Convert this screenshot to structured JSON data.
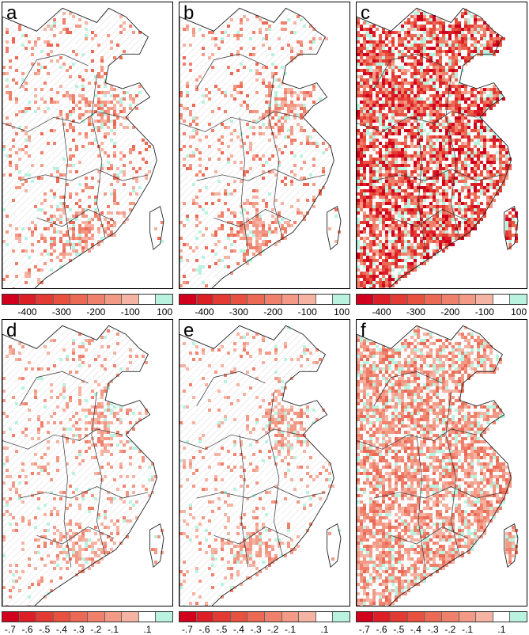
{
  "panels": [
    {
      "label": "a",
      "row": 0,
      "col": 0,
      "scheme": "diff",
      "density": 0.18,
      "intensity": 0.45,
      "seed": 11
    },
    {
      "label": "b",
      "row": 0,
      "col": 1,
      "scheme": "diff",
      "density": 0.16,
      "intensity": 0.45,
      "seed": 23
    },
    {
      "label": "c",
      "row": 0,
      "col": 2,
      "scheme": "diff",
      "density": 0.85,
      "intensity": 0.85,
      "seed": 37
    },
    {
      "label": "d",
      "row": 1,
      "col": 0,
      "scheme": "ratio",
      "density": 0.14,
      "intensity": 0.3,
      "seed": 41
    },
    {
      "label": "e",
      "row": 1,
      "col": 1,
      "scheme": "ratio",
      "density": 0.12,
      "intensity": 0.3,
      "seed": 53
    },
    {
      "label": "f",
      "row": 1,
      "col": 2,
      "scheme": "ratio",
      "density": 0.75,
      "intensity": 0.45,
      "seed": 67
    }
  ],
  "colorbars": {
    "diff": {
      "colors": [
        "#d1001c",
        "#dc1f26",
        "#e33a33",
        "#e8513f",
        "#ec6a55",
        "#ef806b",
        "#f29a86",
        "#f5b3a3",
        "#ffffff",
        "#b9f3e0"
      ],
      "ticks": [
        "-400",
        "-300",
        "-200",
        "-100",
        "100"
      ],
      "tick_positions": [
        0.2,
        0.4,
        0.6,
        0.8,
        1.0
      ]
    },
    "ratio": {
      "colors": [
        "#d1001c",
        "#dc1f26",
        "#e33a33",
        "#e8513f",
        "#ec6a55",
        "#ef806b",
        "#f29a86",
        "#f5b3a3",
        "#ffffff",
        "#b9f3e0"
      ],
      "ticks": [
        "-.7",
        "-.6",
        "-.5",
        "-.4",
        "-.3",
        "-.2",
        "-.1",
        ".1"
      ],
      "tick_positions": [
        0.1,
        0.2,
        0.3,
        0.4,
        0.5,
        0.6,
        0.7,
        0.9
      ]
    }
  }
}
